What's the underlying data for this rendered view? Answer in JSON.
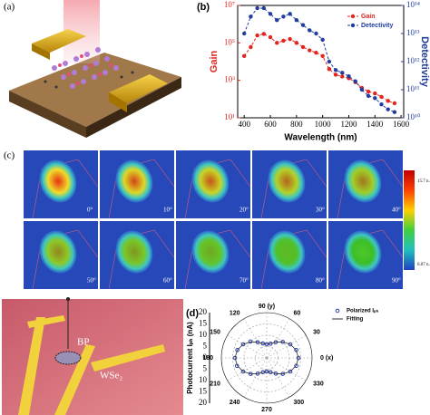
{
  "panels": [
    "(a)",
    "(b)",
    "(c)",
    "(d)"
  ],
  "heatmaps": {
    "labels": [
      "0°",
      "10°",
      "20°",
      "30°",
      "40°",
      "50°",
      "60°",
      "70°",
      "80°",
      "90°"
    ],
    "colorbar_max": "15.7 n.A.",
    "colorbar_min": "6.07 n.A."
  },
  "photo": {
    "labels": [
      "BP",
      "WSe₂"
    ]
  },
  "chart_data": [
    {
      "type": "line",
      "xlabel": "Wavelength (nm)",
      "ylabel": "Gain",
      "y2label": "Detectivity",
      "log_y": true,
      "x": [
        400,
        450,
        500,
        550,
        600,
        650,
        700,
        750,
        800,
        850,
        900,
        950,
        1000,
        1050,
        1100,
        1150,
        1200,
        1250,
        1300,
        1350,
        1400,
        1450,
        1500,
        1550
      ],
      "xlim": [
        350,
        1620
      ],
      "xticks": [
        400,
        600,
        800,
        1000,
        1200,
        1400,
        1600
      ],
      "ylim": [
        10,
        10000000
      ],
      "yticks": [
        {
          "value": 10,
          "label": "10¹"
        },
        {
          "value": 1000,
          "label": "10³"
        },
        {
          "value": 100000,
          "label": "10⁵"
        },
        {
          "value": 10000000,
          "label": "10⁷"
        }
      ],
      "y2lim": [
        10000000000,
        100000000000000
      ],
      "y2ticks": [
        {
          "value": 10000000000,
          "label": "10¹⁰"
        },
        {
          "value": 100000000000,
          "label": "10¹¹"
        },
        {
          "value": 1000000000000,
          "label": "10¹²"
        },
        {
          "value": 10000000000000,
          "label": "10¹³"
        },
        {
          "value": 100000000000000,
          "label": "10¹⁴"
        }
      ],
      "legend": "upper right",
      "series": [
        {
          "name": "Gain",
          "color": "#e3241d",
          "values": [
            20000,
            60000,
            250000,
            300000,
            200000,
            100000,
            130000,
            160000,
            100000,
            60000,
            40000,
            30000,
            20000,
            4000,
            2000,
            1600,
            1300,
            800,
            400,
            250,
            200,
            130,
            80,
            60
          ]
        },
        {
          "name": "Detectivity",
          "color": "#1f3c9e",
          "axis": "y2",
          "values": [
            10000000000000,
            40000000000000,
            80000000000000,
            80000000000000,
            50000000000000,
            30000000000000,
            40000000000000,
            50000000000000,
            30000000000000,
            20000000000000,
            13000000000000,
            10000000000000,
            6000000000000,
            1000000000000,
            500000000000,
            400000000000,
            300000000000,
            200000000000,
            100000000000,
            60000000000,
            50000000000,
            30000000000,
            20000000000,
            16000000000
          ]
        }
      ]
    },
    {
      "type": "polar",
      "ylabel": "Photocurrent Iₚₕ (nA)",
      "theta": [
        0,
        15,
        30,
        45,
        60,
        75,
        90,
        105,
        120,
        135,
        150,
        165,
        180,
        195,
        210,
        225,
        240,
        255,
        270,
        285,
        300,
        315,
        330,
        345
      ],
      "rlim": [
        0,
        20
      ],
      "rticks": [
        0,
        5,
        10,
        15,
        20
      ],
      "thetaticks": [
        {
          "value": 0,
          "label": "0 (x)"
        },
        30,
        60,
        {
          "value": 90,
          "label": "90 (y)"
        },
        120,
        150,
        180,
        210,
        240,
        270,
        300,
        330
      ],
      "series": [
        {
          "name": "Polarized Iₚₕ",
          "color": "#2a3fb0",
          "values": [
            14,
            13.5,
            12,
            10,
            8,
            6.5,
            6,
            6.6,
            8,
            10.2,
            12,
            13.4,
            14,
            13.6,
            12,
            10,
            8,
            6.5,
            6,
            6.5,
            8,
            10,
            12,
            13.5
          ]
        },
        {
          "name": "Fitting",
          "color": "#333333",
          "values": [
            14,
            13.4,
            12,
            10,
            8,
            6.6,
            6,
            6.6,
            8,
            10,
            12,
            13.4,
            14,
            13.4,
            12,
            10,
            8,
            6.6,
            6,
            6.6,
            8,
            10,
            12,
            13.4
          ]
        }
      ]
    }
  ]
}
